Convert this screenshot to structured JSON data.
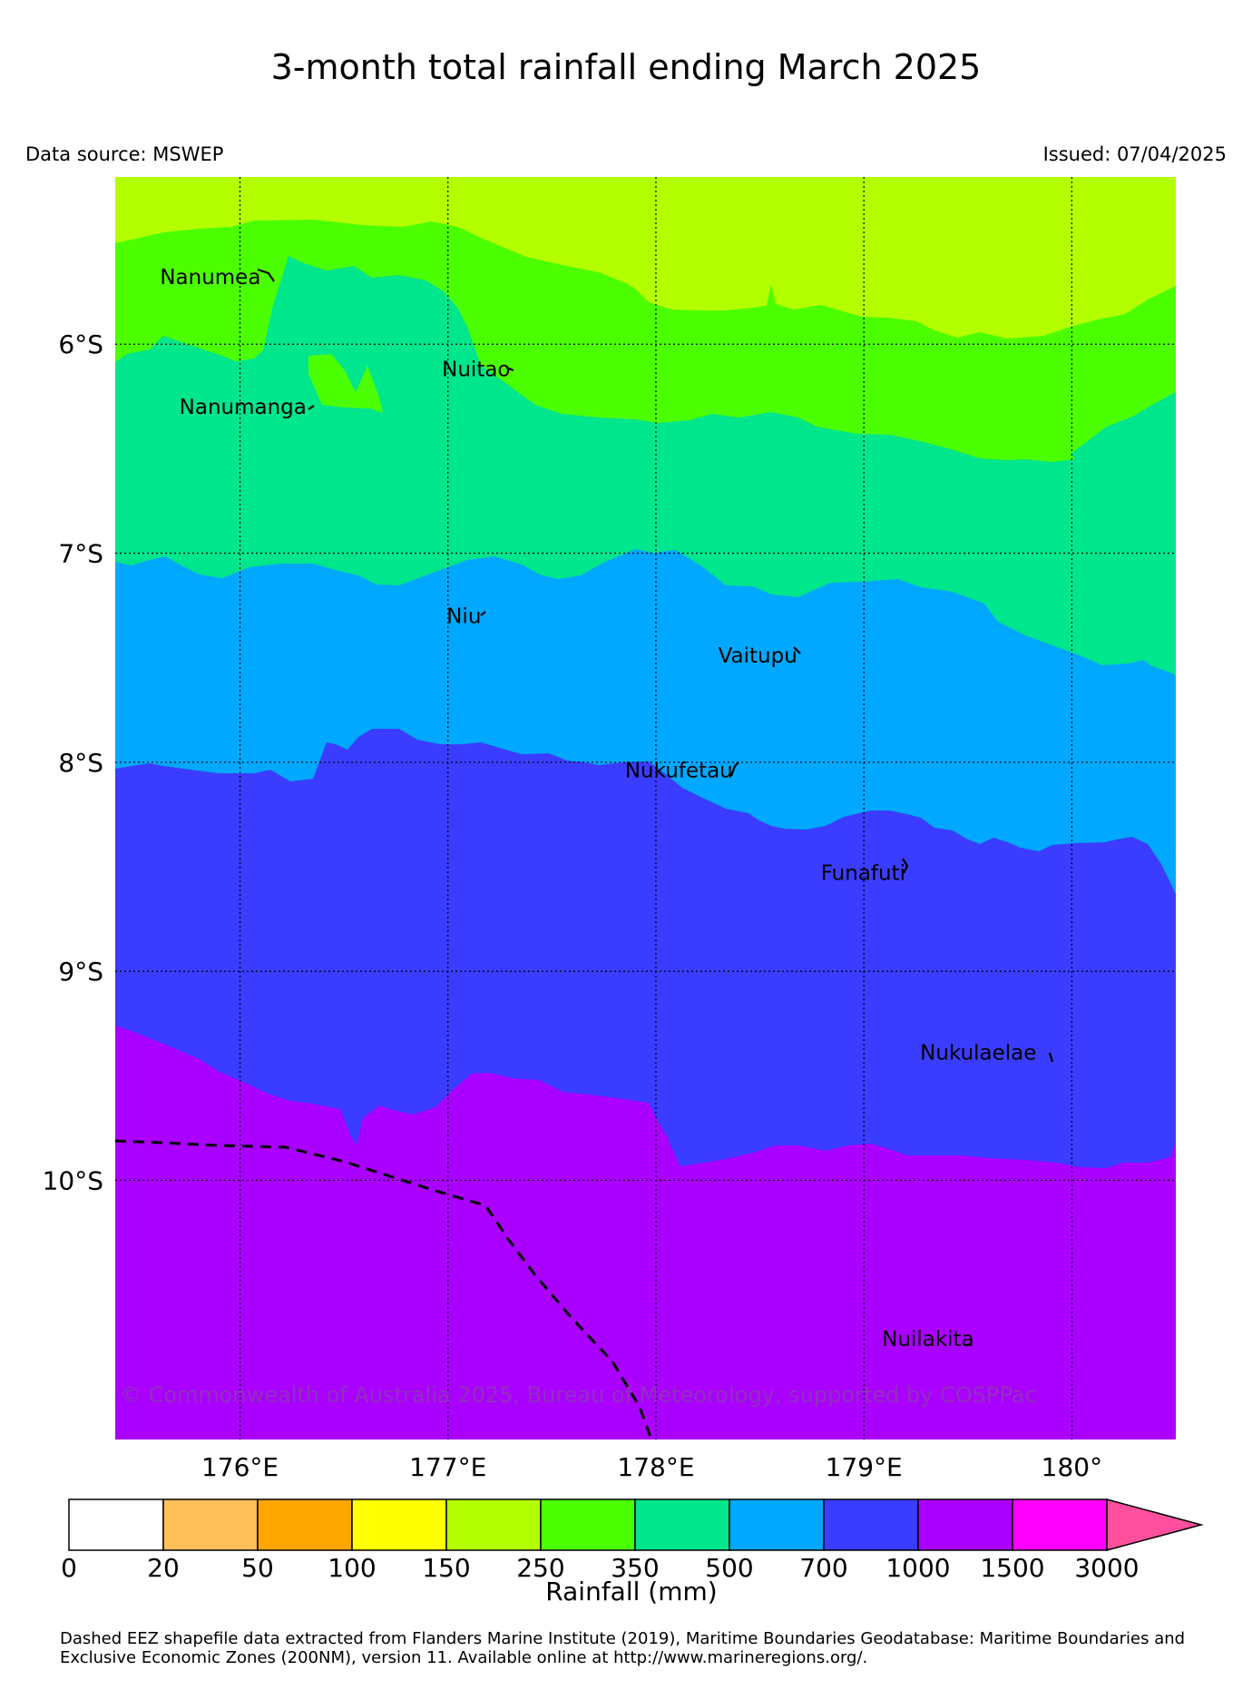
{
  "title": "3-month total rainfall ending March 2025",
  "data_source": "Data source: MSWEP",
  "issued": "Issued: 07/04/2025",
  "map": {
    "lon_range": [
      175.4,
      180.5
    ],
    "lat_range": [
      -5.2,
      -11.24
    ],
    "lon_ticks": [
      {
        "value": 176,
        "label": "176°E"
      },
      {
        "value": 177,
        "label": "177°E"
      },
      {
        "value": 178,
        "label": "178°E"
      },
      {
        "value": 179,
        "label": "179°E"
      },
      {
        "value": 180,
        "label": "180°"
      }
    ],
    "lat_ticks": [
      {
        "value": -6,
        "label": "6°S"
      },
      {
        "value": -7,
        "label": "7°S"
      },
      {
        "value": -8,
        "label": "8°S"
      },
      {
        "value": -9,
        "label": "9°S"
      },
      {
        "value": -10,
        "label": "10°S"
      }
    ],
    "gridlines": true,
    "places": [
      {
        "name": "Nanumea",
        "lon": 176.1,
        "lat": -5.67
      },
      {
        "name": "Nuitao",
        "lon": 177.3,
        "lat": -6.11
      },
      {
        "name": "Nanumanga",
        "lon": 176.32,
        "lat": -6.29
      },
      {
        "name": "Niu",
        "lon": 177.16,
        "lat": -7.29
      },
      {
        "name": "Vaitupu",
        "lon": 178.68,
        "lat": -7.48
      },
      {
        "name": "Nukufetau",
        "lon": 178.37,
        "lat": -8.03
      },
      {
        "name": "Funafuti",
        "lon": 179.2,
        "lat": -8.52
      },
      {
        "name": "Nukulaelae",
        "lon": 179.83,
        "lat": -9.38
      },
      {
        "name": "Nuilakita",
        "lon": 179.53,
        "lat": -10.75
      }
    ],
    "rainfall_bands": [
      {
        "range": "150-250",
        "color": "#b3ff00"
      },
      {
        "range": "250-350",
        "color": "#4cff00"
      },
      {
        "range": "350-500",
        "color": "#00e68c"
      },
      {
        "range": "500-700",
        "color": "#00a8ff"
      },
      {
        "range": "700-1000",
        "color": "#3a3cff"
      },
      {
        "range": "1000-1500",
        "color": "#aa00ff"
      }
    ],
    "copyright": "© Commonwealth of Australia 2025, Bureau of Meteorology, supported by COSPPac"
  },
  "colorbar": {
    "label": "Rainfall (mm)",
    "ticks": [
      "0",
      "20",
      "50",
      "100",
      "150",
      "250",
      "350",
      "500",
      "700",
      "1000",
      "1500",
      "3000"
    ],
    "colors": [
      "#ffffff",
      "#ffbf59",
      "#ffa600",
      "#ffff00",
      "#b3ff00",
      "#4cff00",
      "#00e68c",
      "#00a8ff",
      "#3a3cff",
      "#aa00ff",
      "#ff00ff"
    ],
    "extend_color": "#ff4f9d"
  },
  "footer": "Dashed EEZ shapefile data extracted from Flanders Marine Institute (2019), Maritime Boundaries Geodatabase: Maritime Boundaries and Exclusive Economic Zones (200NM), version 11. Available online at http://www.marineregions.org/."
}
